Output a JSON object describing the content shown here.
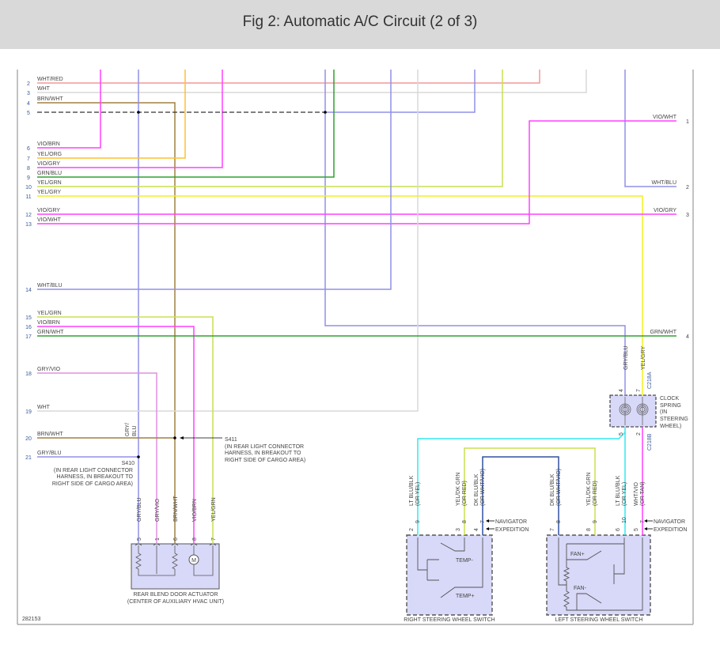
{
  "header": {
    "title": "Fig 2: Automatic A/C Circuit (2 of 3)"
  },
  "figure_id": "282153",
  "colors": {
    "WHT/RED": "#f09a9a",
    "WHT": "#d8d8d8",
    "BRN/WHT": "#a08040",
    "BLU": "#9090e8",
    "VIO": "#ff40ff",
    "YEL/ORG": "#ffc030",
    "GRN": "#30a030",
    "YEL/GRN": "#c8e050",
    "YEL/GRY": "#f0f020",
    "GRY/VIO": "#e090e0",
    "LT BLU": "#30e8f0",
    "DK BLU": "#3050a0",
    "component_fill": "#d8d8f8"
  },
  "left_pins": [
    {
      "num": "2",
      "label": "WHT/RED"
    },
    {
      "num": "3",
      "label": "WHT"
    },
    {
      "num": "4",
      "label": "BRN/WHT"
    },
    {
      "num": "5",
      "label": ""
    },
    {
      "num": "6",
      "label": "VIO/BRN"
    },
    {
      "num": "7",
      "label": "YEL/ORG"
    },
    {
      "num": "8",
      "label": "VIO/GRY"
    },
    {
      "num": "9",
      "label": "GRN/BLU"
    },
    {
      "num": "10",
      "label": "YEL/GRN"
    },
    {
      "num": "11",
      "label": "YEL/GRY"
    },
    {
      "num": "12",
      "label": "VIO/GRY"
    },
    {
      "num": "13",
      "label": "VIO/WHT"
    },
    {
      "num": "14",
      "label": "WHT/BLU"
    },
    {
      "num": "15",
      "label": "YEL/GRN"
    },
    {
      "num": "16",
      "label": "VIO/BRN"
    },
    {
      "num": "17",
      "label": "GRN/WHT"
    },
    {
      "num": "18",
      "label": "GRY/VIO"
    },
    {
      "num": "19",
      "label": "WHT"
    },
    {
      "num": "20",
      "label": "BRN/WHT"
    },
    {
      "num": "21",
      "label": "GRY/BLU"
    }
  ],
  "right_pins": [
    {
      "num": "1",
      "label": "VIO/WHT"
    },
    {
      "num": "2",
      "label": "WHT/BLU"
    },
    {
      "num": "3",
      "label": "VIO/GRY"
    },
    {
      "num": "4",
      "label": "GRN/WHT"
    }
  ],
  "splices": {
    "s410": {
      "name": "S410",
      "lines": [
        "(IN REAR LIGHT CONNECTOR",
        "HARNESS, IN BREAKOUT TO",
        "RIGHT SIDE OF CARGO AREA)"
      ]
    },
    "s411": {
      "name": "S411",
      "lines": [
        "(IN REAR LIGHT CONNECTOR",
        "HARNESS, IN BREAKOUT TO",
        "RIGHT SIDE OF CARGO AREA)"
      ]
    },
    "gry_blu_label": [
      "GRY/",
      "BLU"
    ]
  },
  "actuator": {
    "title": "REAR BLEND DOOR ACTUATOR",
    "subtitle": "(CENTER OF AUXILIARY HVAC UNIT)",
    "motor": "M",
    "pins": [
      {
        "num": "5",
        "wire": "GRY/BLU"
      },
      {
        "num": "1",
        "wire": "GRY/VIO"
      },
      {
        "num": "6",
        "wire": "BRN/WHT"
      },
      {
        "num": "8",
        "wire": "VIO/BRN"
      },
      {
        "num": "7",
        "wire": "YEL/GRN"
      }
    ]
  },
  "clock_spring": {
    "label": [
      "CLOCK",
      "SPRING",
      "(IN",
      "STEERING",
      "WHEEL)"
    ],
    "connector_a": "C218A",
    "connector_b": "C218B",
    "top_pins": [
      {
        "num": "4",
        "wire": "GRY/BLU"
      },
      {
        "num": "7",
        "wire": "YEL/GRY"
      }
    ],
    "bottom_pins": [
      {
        "num": "5"
      },
      {
        "num": "2"
      }
    ]
  },
  "variants": {
    "navigator": "NAVIGATOR",
    "expedition": "EXPEDITION"
  },
  "right_switch": {
    "title": "RIGHT STEERING WHEEL SWITCH",
    "temp_minus": "TEMP-",
    "temp_plus": "TEMP+",
    "pins": [
      {
        "nav": "9",
        "exp": "2",
        "wire": "LT BLU/BLK",
        "alt": "(OR YEL)"
      },
      {
        "nav": "8",
        "exp": "3",
        "wire": "YEL/DK GRN",
        "alt": "(OR RED)"
      },
      {
        "nav": "7",
        "exp": "4",
        "wire": "DK BLU/BLK",
        "alt": "(OR WHT/VIO)"
      }
    ]
  },
  "left_switch": {
    "title": "LEFT STEERING WHEEL SWITCH",
    "fan_plus": "FAN+",
    "fan_minus": "FAN-",
    "pins": [
      {
        "nav": "8",
        "exp": "7",
        "wire": "DK BLU/BLK",
        "alt": "(OR WHT/VIO)"
      },
      {
        "nav": "9",
        "exp": "8",
        "wire": "YEL/DK GRN",
        "alt": "(OR RED)"
      },
      {
        "nav": "10",
        "exp": "6",
        "wire": "LT BLU/BLK",
        "alt": "(OR YEL)"
      },
      {
        "nav": "7",
        "exp": "5",
        "wire": "WHT/VIO",
        "alt": "(OR TAN)"
      }
    ]
  }
}
